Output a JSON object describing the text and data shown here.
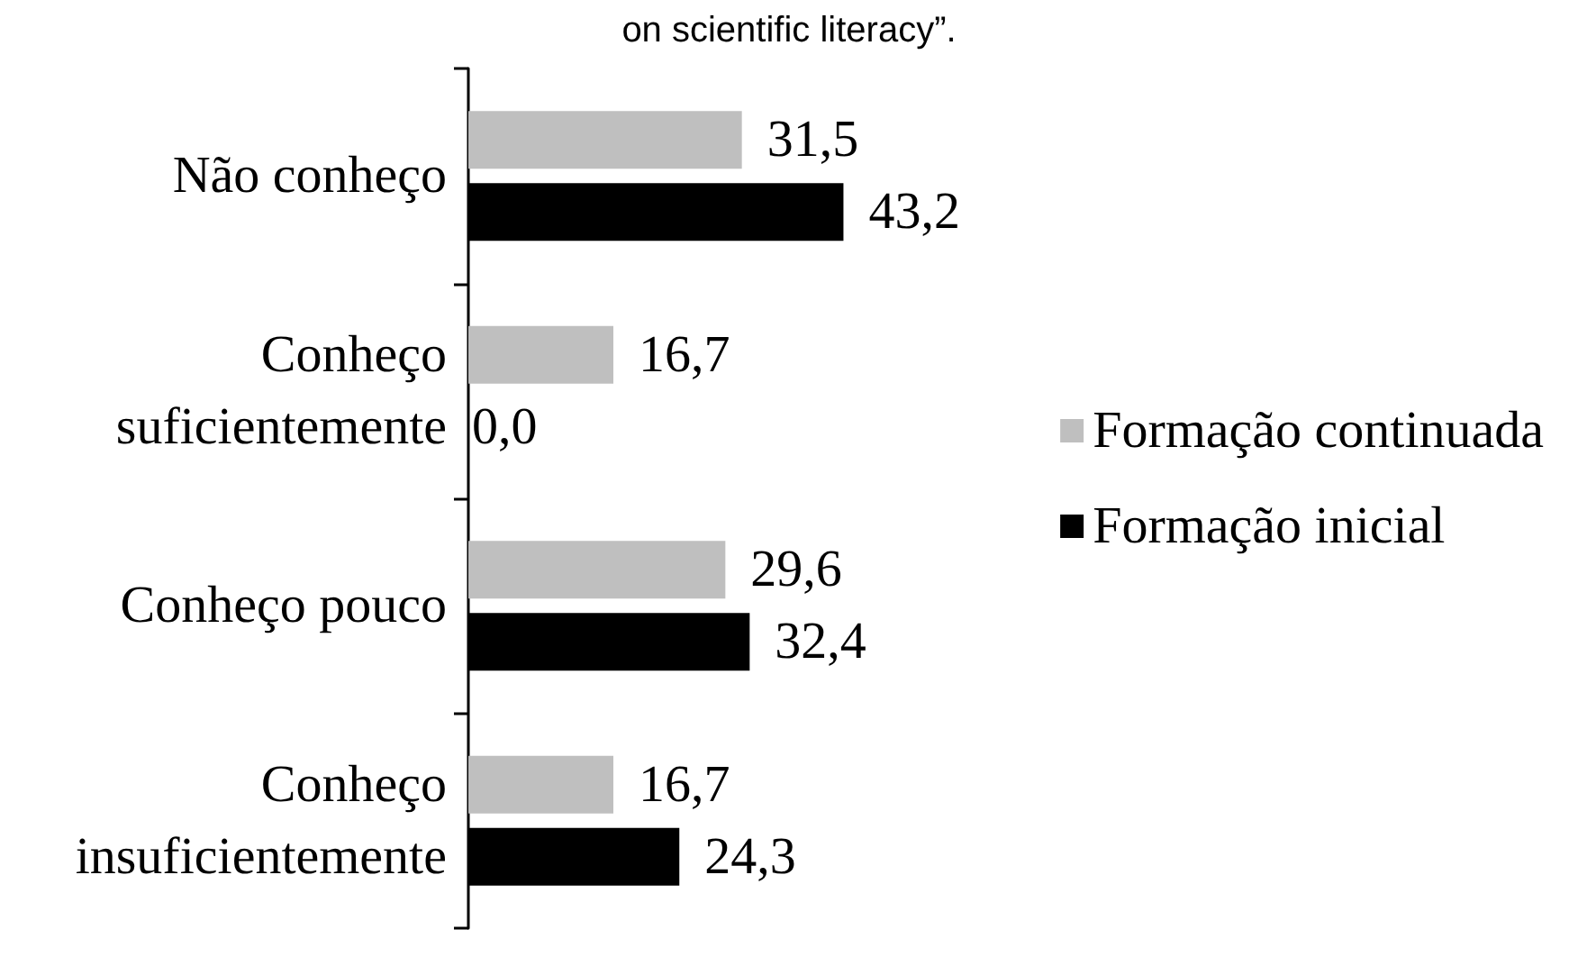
{
  "chart_data": {
    "type": "bar",
    "orientation": "horizontal",
    "title": "on scientific literacy”.",
    "categories": [
      "Não conheço",
      "Conheço\nsuficientemente",
      "Conheço pouco",
      "Conheço\ninsuficientemente"
    ],
    "series": [
      {
        "name": "Formação continuada",
        "color": "#bfbfbf",
        "values": [
          31.5,
          16.7,
          29.6,
          16.7
        ],
        "value_labels": [
          "31,5",
          "16,7",
          "29,6",
          "16,7"
        ]
      },
      {
        "name": "Formação inicial",
        "color": "#000000",
        "values": [
          43.2,
          0,
          32.4,
          24.3
        ],
        "value_labels": [
          "43,2",
          "0,0",
          "32,4",
          "24,3"
        ]
      }
    ],
    "legend": "right"
  }
}
